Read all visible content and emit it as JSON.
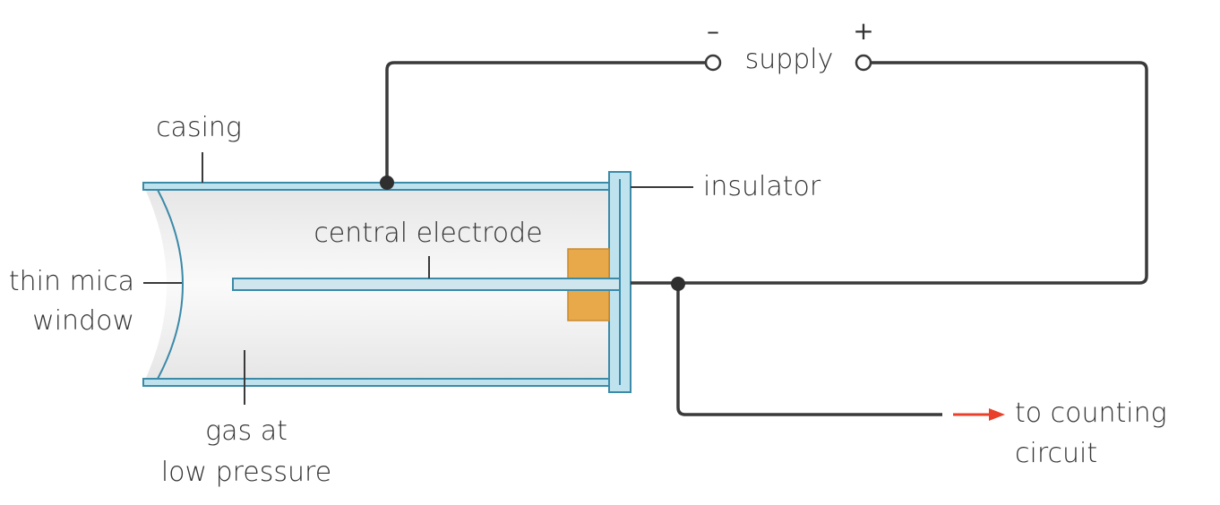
{
  "labels": {
    "minus": "–",
    "plus": "+",
    "supply": "supply",
    "casing": "casing",
    "insulator": "insulator",
    "central_electrode": "central electrode",
    "window_line1": "thin mica",
    "window_line2": "window",
    "gas_line1": "gas at",
    "gas_line2": "low pressure",
    "counting_line1": "to counting",
    "counting_line2": "circuit"
  },
  "colors": {
    "casing_fill": "#bfe3ee",
    "casing_stroke": "#3b8aa8",
    "gas_fill": "#ececec",
    "insulator_block": "#e8a94a",
    "wire": "#3a3a3a",
    "arrow": "#e8402a",
    "text": "#333333"
  }
}
